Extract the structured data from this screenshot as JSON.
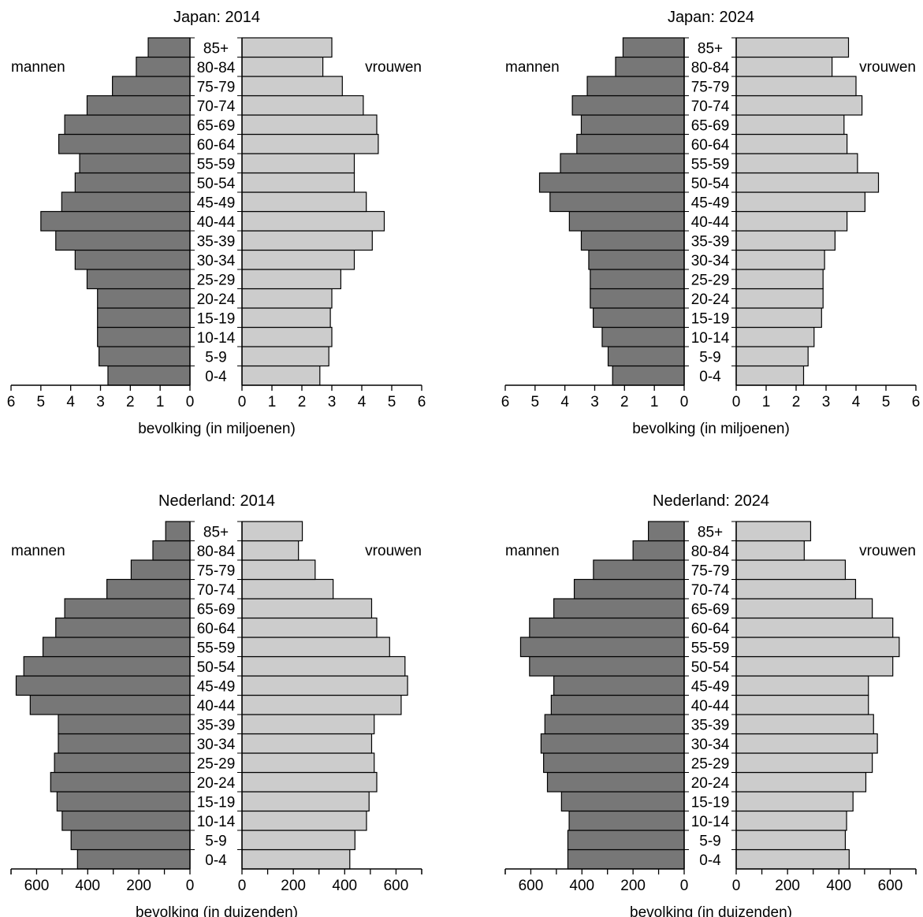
{
  "age_groups": [
    "0-4",
    "5-9",
    "10-14",
    "15-19",
    "20-24",
    "25-29",
    "30-34",
    "35-39",
    "40-44",
    "45-49",
    "50-54",
    "55-59",
    "60-64",
    "65-69",
    "70-74",
    "75-79",
    "80-84",
    "85+"
  ],
  "labels": {
    "left": "mannen",
    "right": "vrouwen"
  },
  "colors": {
    "men": "#777777",
    "women": "#cccccc",
    "outline": "#000000"
  },
  "chart_data": [
    {
      "type": "bar",
      "title": "Japan: 2014",
      "xlabel": "bevolking (in miljoenen)",
      "xlim": [
        0,
        6
      ],
      "ticks": [
        0,
        1,
        2,
        3,
        4,
        5,
        6
      ],
      "series": [
        {
          "name": "mannen",
          "values": [
            2.75,
            3.05,
            3.1,
            3.1,
            3.1,
            3.45,
            3.85,
            4.5,
            5.0,
            4.3,
            3.85,
            3.7,
            4.4,
            4.2,
            3.45,
            2.6,
            1.8,
            1.4
          ]
        },
        {
          "name": "vrouwen",
          "values": [
            2.6,
            2.9,
            3.0,
            2.95,
            3.0,
            3.3,
            3.75,
            4.35,
            4.75,
            4.15,
            3.75,
            3.75,
            4.55,
            4.5,
            4.05,
            3.35,
            2.7,
            3.0
          ]
        }
      ]
    },
    {
      "type": "bar",
      "title": "Japan: 2024",
      "xlabel": "bevolking (in miljoenen)",
      "xlim": [
        0,
        6
      ],
      "ticks": [
        0,
        1,
        2,
        3,
        4,
        5,
        6
      ],
      "series": [
        {
          "name": "mannen",
          "values": [
            2.4,
            2.55,
            2.75,
            3.05,
            3.15,
            3.15,
            3.2,
            3.45,
            3.85,
            4.5,
            4.85,
            4.15,
            3.6,
            3.45,
            3.75,
            3.25,
            2.3,
            2.05
          ]
        },
        {
          "name": "vrouwen",
          "values": [
            2.25,
            2.4,
            2.6,
            2.85,
            2.9,
            2.9,
            2.95,
            3.3,
            3.7,
            4.3,
            4.75,
            4.05,
            3.7,
            3.6,
            4.2,
            4.0,
            3.2,
            3.75
          ]
        }
      ]
    },
    {
      "type": "bar",
      "title": "Nederland: 2014",
      "xlabel": "bevolking (in duizenden)",
      "xlim": [
        0,
        700
      ],
      "ticks": [
        0,
        200,
        400,
        600
      ],
      "series": [
        {
          "name": "mannen",
          "values": [
            440,
            465,
            500,
            520,
            545,
            530,
            515,
            515,
            625,
            680,
            650,
            575,
            525,
            490,
            325,
            230,
            145,
            95
          ]
        },
        {
          "name": "vrouwen",
          "values": [
            420,
            440,
            485,
            495,
            525,
            515,
            505,
            515,
            620,
            645,
            635,
            575,
            525,
            505,
            355,
            285,
            220,
            235
          ]
        }
      ]
    },
    {
      "type": "bar",
      "title": "Nederland: 2024",
      "xlabel": "bevolking (in duizenden)",
      "xlim": [
        0,
        700
      ],
      "ticks": [
        0,
        200,
        400,
        600
      ],
      "series": [
        {
          "name": "mannen",
          "values": [
            455,
            455,
            450,
            480,
            535,
            550,
            560,
            545,
            520,
            510,
            605,
            640,
            605,
            510,
            430,
            355,
            200,
            140
          ]
        },
        {
          "name": "vrouwen",
          "values": [
            440,
            425,
            430,
            455,
            505,
            530,
            550,
            535,
            515,
            515,
            610,
            635,
            610,
            530,
            465,
            425,
            265,
            290
          ]
        }
      ]
    }
  ]
}
